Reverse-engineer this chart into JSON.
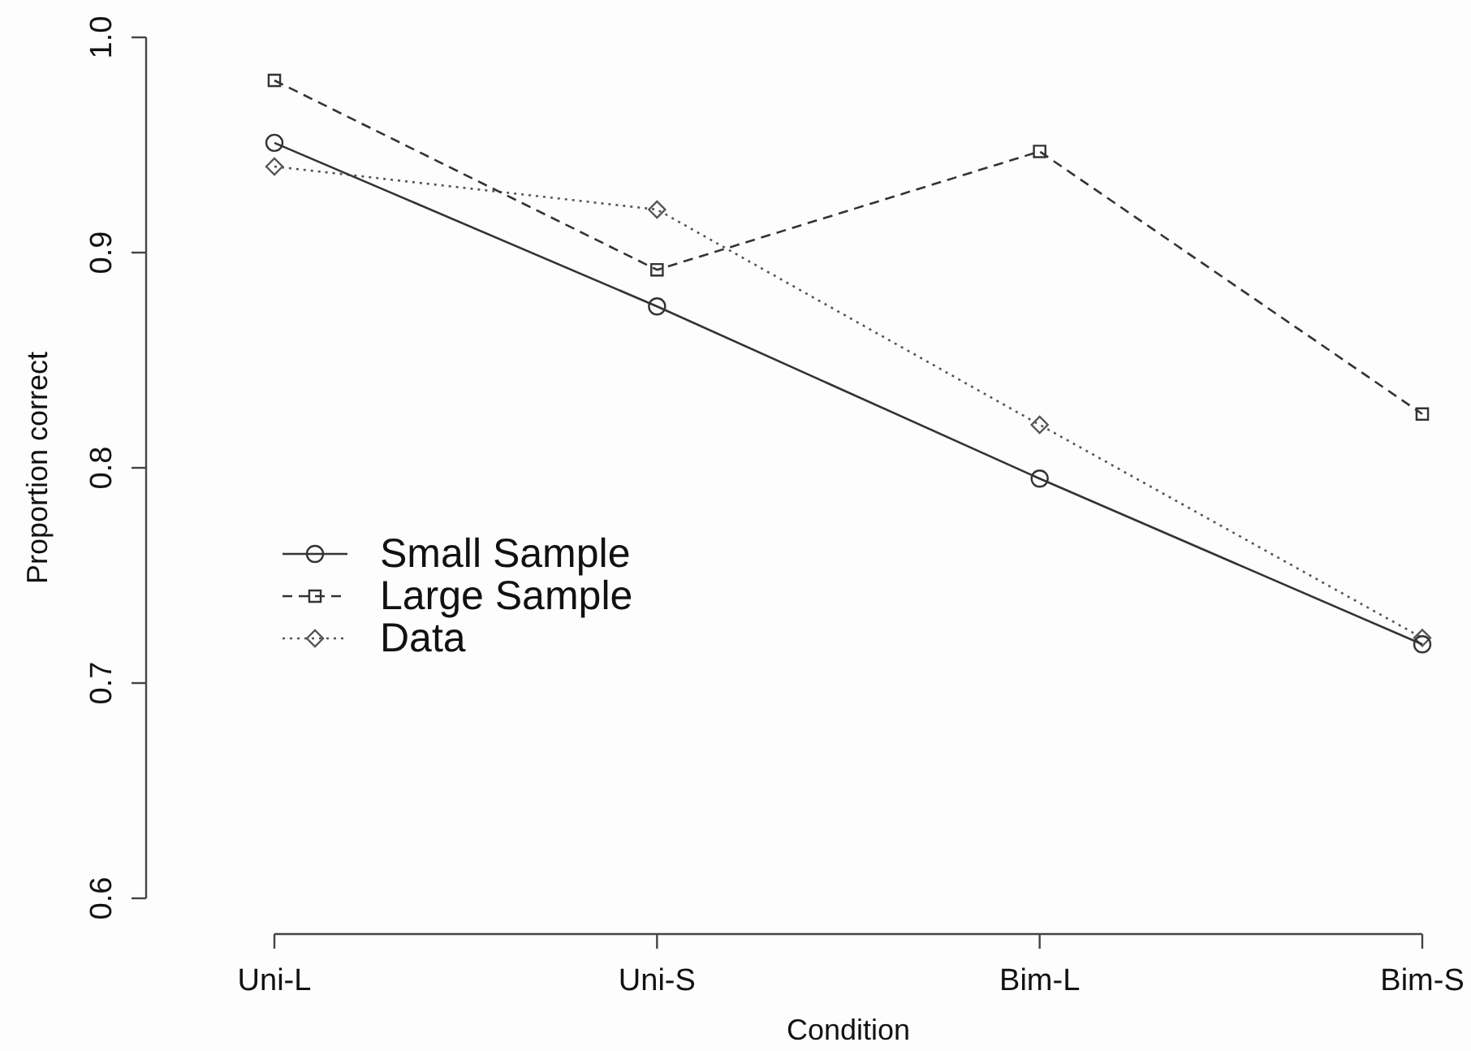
{
  "chart_data": {
    "type": "line",
    "xlabel": "Condition",
    "ylabel": "Proportion correct",
    "categories": [
      "Uni-L",
      "Uni-S",
      "Bim-L",
      "Bim-S"
    ],
    "series": [
      {
        "name": "Small Sample",
        "color": "#333333",
        "marker": "circle",
        "line_style": "solid",
        "values": [
          0.951,
          0.875,
          0.795,
          0.718
        ]
      },
      {
        "name": "Large Sample",
        "color": "#333333",
        "marker": "square",
        "line_style": "dashed",
        "values": [
          0.98,
          0.892,
          0.947,
          0.825
        ]
      },
      {
        "name": "Data",
        "color": "#555555",
        "marker": "diamond",
        "line_style": "dotted",
        "values": [
          0.94,
          0.92,
          0.82,
          0.721
        ]
      }
    ],
    "ylim": [
      0.6,
      1.0
    ],
    "yticks": [
      0.6,
      0.7,
      0.8,
      0.9,
      {
        "value": 1,
        "label": "1.0"
      }
    ],
    "grid": false,
    "legend": "left"
  }
}
